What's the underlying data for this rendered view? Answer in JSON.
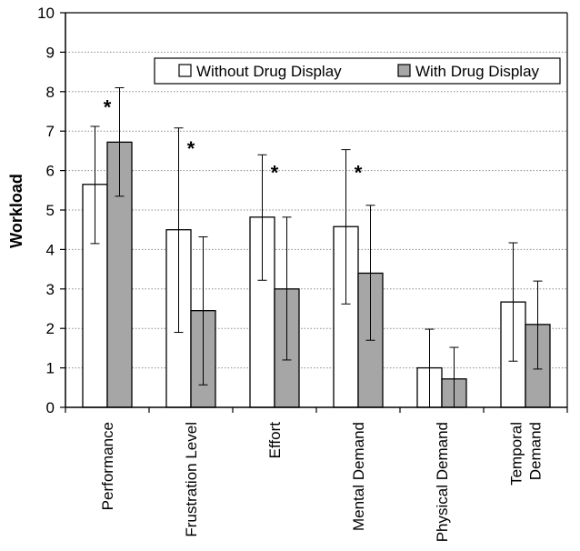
{
  "chart_data": {
    "type": "bar",
    "ylabel": "Workload",
    "ylim": [
      0,
      10
    ],
    "yticks": [
      0,
      1,
      2,
      3,
      4,
      5,
      6,
      7,
      8,
      9,
      10
    ],
    "grid": "horizontal dotted",
    "legend_position": "top-right",
    "categories": [
      [
        "Performance"
      ],
      [
        "Frustration Level"
      ],
      [
        "Effort"
      ],
      [
        "Mental Demand"
      ],
      [
        "Physical Demand"
      ],
      [
        "Temporal",
        "Demand"
      ]
    ],
    "series": [
      {
        "name": "Without Drug Display",
        "color": "#ffffff",
        "values": [
          5.65,
          4.5,
          4.82,
          4.58,
          1.0,
          2.67
        ],
        "error_low": [
          4.15,
          1.9,
          3.22,
          2.62,
          0.0,
          1.17
        ],
        "error_high": [
          7.12,
          7.08,
          6.4,
          6.53,
          1.98,
          4.17
        ]
      },
      {
        "name": "With Drug Display",
        "color": "#a6a6a6",
        "values": [
          6.72,
          2.45,
          3.0,
          3.4,
          0.72,
          2.1
        ],
        "error_low": [
          5.35,
          0.57,
          1.2,
          1.7,
          0.0,
          0.97
        ],
        "error_high": [
          8.1,
          4.32,
          4.82,
          5.12,
          1.52,
          3.2
        ]
      }
    ],
    "annotations": [
      {
        "text": "*",
        "category": 0,
        "y": 7.75
      },
      {
        "text": "*",
        "category": 1,
        "y": 6.7
      },
      {
        "text": "*",
        "category": 2,
        "y": 6.1
      },
      {
        "text": "*",
        "category": 3,
        "y": 6.1
      }
    ]
  }
}
